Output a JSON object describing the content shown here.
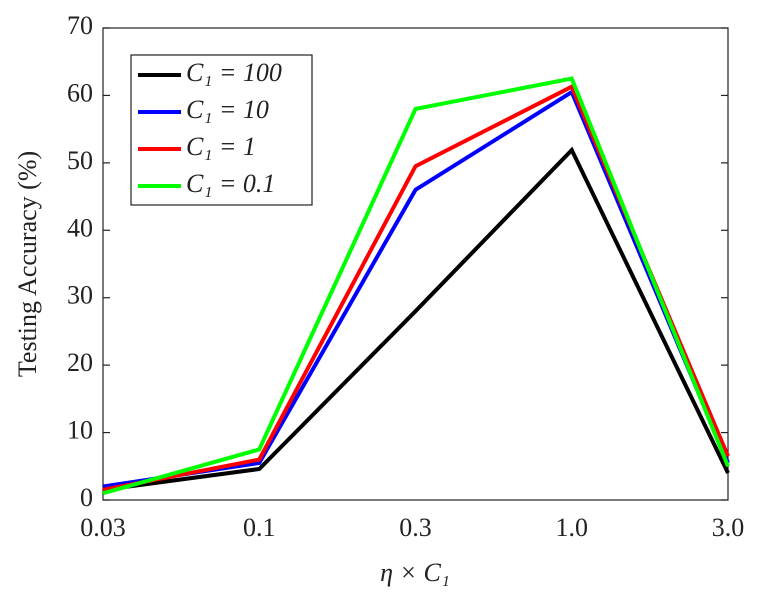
{
  "chart_data": {
    "type": "line",
    "x_label": "η × C₁",
    "y_label": "Testing Accuracy (%)",
    "categories": [
      "0.03",
      "0.1",
      "0.3",
      "1.0",
      "3.0"
    ],
    "series": [
      {
        "name": "C₁ = 100",
        "color": "#000000",
        "values": [
          1.5,
          4.6,
          28,
          51.9,
          4.0
        ]
      },
      {
        "name": "C₁ = 10",
        "color": "#0000ff",
        "values": [
          2.0,
          5.5,
          46,
          60.5,
          5.5
        ]
      },
      {
        "name": "C₁ = 1",
        "color": "#ff0000",
        "values": [
          1.5,
          6.0,
          49.5,
          61.3,
          6.5
        ]
      },
      {
        "name": "C₁ = 0.1",
        "color": "#00ff00",
        "values": [
          1.0,
          7.5,
          58,
          62.5,
          5.0
        ]
      }
    ],
    "ylim": [
      0,
      70
    ],
    "yticks": [
      0,
      10,
      20,
      30,
      40,
      50,
      60,
      70
    ],
    "legend": "upper left"
  }
}
